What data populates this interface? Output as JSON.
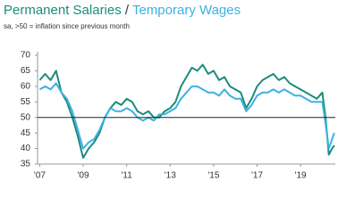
{
  "chart_data": {
    "type": "line",
    "title_separator": " / ",
    "subtitle": "sa, >50 = inflation since previous month",
    "x": [
      2007,
      2007.25,
      2007.5,
      2007.75,
      2008,
      2008.25,
      2008.5,
      2008.75,
      2009,
      2009.25,
      2009.5,
      2009.75,
      2010,
      2010.25,
      2010.5,
      2010.75,
      2011,
      2011.25,
      2011.5,
      2011.75,
      2012,
      2012.25,
      2012.5,
      2012.75,
      2013,
      2013.25,
      2013.5,
      2013.75,
      2014,
      2014.25,
      2014.5,
      2014.75,
      2015,
      2015.25,
      2015.5,
      2015.75,
      2016,
      2016.25,
      2016.5,
      2016.75,
      2017,
      2017.25,
      2017.5,
      2017.75,
      2018,
      2018.25,
      2018.5,
      2018.75,
      2019,
      2019.25,
      2019.5,
      2019.75,
      2020,
      2020.15,
      2020.3,
      2020.45,
      2020.55
    ],
    "series": [
      {
        "name": "Permanent Salaries",
        "color": "#1b8c7c",
        "values": [
          62,
          64,
          62,
          65,
          58,
          55,
          50,
          44,
          37,
          40,
          42,
          45,
          50,
          53,
          55,
          54,
          56,
          55,
          52,
          51,
          52,
          50,
          50,
          52,
          53,
          55,
          60,
          63,
          66,
          65,
          67,
          64,
          65,
          62,
          63,
          60,
          59,
          58,
          53,
          56,
          60,
          62,
          63,
          64,
          62,
          63,
          61,
          60,
          59,
          58,
          57,
          56,
          58,
          50,
          38,
          40,
          41
        ]
      },
      {
        "name": "Temporary Wages",
        "color": "#3cb1e3",
        "values": [
          59,
          60,
          59,
          61,
          58,
          56,
          52,
          46,
          40,
          42,
          43,
          46,
          50,
          53,
          52,
          52,
          53,
          52,
          50,
          49,
          50,
          49,
          51,
          51,
          52,
          53,
          56,
          58,
          60,
          60,
          59,
          58,
          58,
          57,
          59,
          57,
          56,
          56,
          52,
          54,
          57,
          58,
          58,
          59,
          58,
          59,
          58,
          57,
          57,
          56,
          55,
          55,
          55,
          48,
          40,
          43,
          45
        ]
      }
    ],
    "xlim": [
      2006.9,
      2020.6
    ],
    "xticks": [
      {
        "value": 2007,
        "label": "'07"
      },
      {
        "value": 2009,
        "label": "'09"
      },
      {
        "value": 2011,
        "label": "'11"
      },
      {
        "value": 2013,
        "label": "'13"
      },
      {
        "value": 2015,
        "label": "'15"
      },
      {
        "value": 2017,
        "label": "'17"
      },
      {
        "value": 2019,
        "label": "'19"
      }
    ],
    "ylim": [
      35,
      70
    ],
    "yticks": [
      35,
      40,
      45,
      50,
      55,
      60,
      65,
      70
    ],
    "reference_line": 50
  }
}
